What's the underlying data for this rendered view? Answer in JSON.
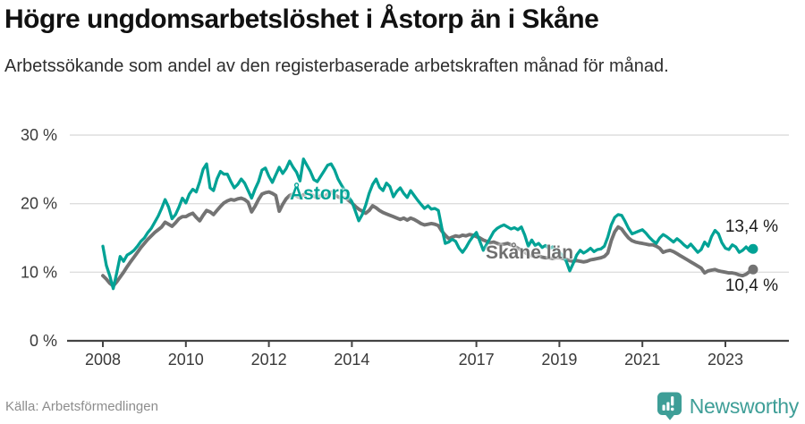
{
  "header": {
    "title": "Högre ungdomsarbetslöshet i Åstorp än i Skåne",
    "subtitle": "Arbetssökande som andel av den registerbaserade arbetskraften månad för månad."
  },
  "footer": {
    "source": "Källa: Arbetsförmedlingen",
    "brand": "Newsworthy"
  },
  "colors": {
    "accent_teal": "#00a295",
    "series_gray": "#737373",
    "brand_teal": "#3e9e97",
    "gridline": "#dedede",
    "axis": "#444444",
    "text_dark": "#1a1a1a"
  },
  "chart_data": {
    "type": "line",
    "unit": "%",
    "frequency": "monthly",
    "x_start": "2008-01",
    "x_end": "2023-09",
    "ylim": [
      0,
      30
    ],
    "grid": "horizontal",
    "legend_position": "inline-labels",
    "y_ticks": [
      {
        "value": 30,
        "label": "30 %"
      },
      {
        "value": 20,
        "label": "20 %"
      },
      {
        "value": 10,
        "label": "10 %"
      },
      {
        "value": 0,
        "label": "0 %"
      }
    ],
    "x_ticks": [
      {
        "year": 2008,
        "label": "2008"
      },
      {
        "year": 2010,
        "label": "2010"
      },
      {
        "year": 2012,
        "label": "2012"
      },
      {
        "year": 2014,
        "label": "2014"
      },
      {
        "year": 2017,
        "label": "2017"
      },
      {
        "year": 2019,
        "label": "2019"
      },
      {
        "year": 2021,
        "label": "2021"
      },
      {
        "year": 2023,
        "label": "2023"
      }
    ],
    "series": [
      {
        "name": "Åstorp",
        "color": "#00a295",
        "end_label": "13,4 %",
        "end_value": 13.4,
        "values": [
          13.8,
          11.0,
          9.5,
          7.6,
          9.9,
          12.3,
          11.6,
          12.5,
          12.8,
          13.2,
          13.8,
          14.5,
          15.0,
          15.8,
          16.4,
          17.3,
          18.2,
          19.3,
          20.6,
          19.5,
          17.8,
          18.4,
          19.5,
          20.8,
          20.1,
          21.4,
          22.1,
          21.7,
          23.2,
          25.0,
          25.8,
          22.3,
          21.9,
          23.6,
          24.7,
          24.3,
          24.3,
          23.2,
          22.3,
          22.8,
          23.6,
          23.0,
          21.9,
          20.8,
          22.1,
          23.2,
          24.9,
          25.2,
          24.0,
          23.1,
          24.2,
          25.3,
          24.4,
          25.1,
          26.2,
          25.3,
          24.6,
          23.3,
          26.5,
          25.6,
          24.7,
          23.5,
          23.2,
          24.0,
          24.8,
          25.6,
          25.8,
          24.9,
          23.6,
          22.7,
          21.9,
          21.0,
          20.3,
          18.9,
          17.5,
          18.4,
          19.8,
          21.5,
          22.8,
          23.6,
          22.4,
          21.9,
          23.0,
          22.5,
          21.0,
          21.8,
          22.3,
          21.5,
          20.9,
          21.9,
          21.2,
          20.5,
          19.9,
          19.3,
          19.7,
          19.2,
          19.3,
          19.0,
          16.5,
          14.2,
          14.4,
          14.8,
          14.5,
          13.5,
          12.9,
          13.6,
          14.5,
          15.2,
          15.8,
          14.5,
          13.2,
          14.1,
          15.0,
          15.9,
          16.4,
          16.7,
          16.9,
          16.6,
          16.3,
          16.5,
          16.2,
          16.6,
          15.4,
          13.8,
          14.7,
          13.9,
          14.2,
          13.6,
          13.9,
          13.4,
          13.7,
          13.2,
          12.9,
          12.4,
          11.6,
          10.2,
          11.3,
          12.5,
          13.2,
          12.8,
          13.1,
          13.5,
          13.0,
          13.3,
          13.4,
          13.8,
          15.1,
          16.9,
          18.0,
          18.4,
          18.3,
          17.4,
          16.4,
          15.6,
          15.8,
          16.0,
          16.2,
          15.7,
          15.1,
          14.6,
          14.2,
          15.0,
          15.5,
          15.2,
          14.8,
          14.4,
          14.9,
          14.5,
          14.0,
          13.6,
          14.1,
          13.5,
          12.9,
          13.3,
          14.4,
          13.8,
          15.2,
          16.1,
          15.6,
          14.3,
          13.5,
          13.3,
          14.0,
          13.7,
          12.9,
          13.2,
          13.7,
          13.1,
          13.4
        ]
      },
      {
        "name": "Skåne län",
        "color": "#737373",
        "end_label": "10,4 %",
        "end_value": 10.4,
        "values": [
          9.5,
          9.0,
          8.4,
          8.0,
          8.6,
          9.3,
          10.0,
          10.8,
          11.5,
          12.2,
          12.9,
          13.6,
          14.2,
          14.8,
          15.3,
          15.8,
          16.2,
          16.6,
          17.3,
          17.0,
          16.7,
          17.2,
          17.8,
          18.1,
          18.1,
          18.4,
          18.6,
          18.0,
          17.5,
          18.3,
          19.0,
          18.8,
          18.4,
          19.0,
          19.6,
          20.1,
          20.4,
          20.6,
          20.5,
          20.7,
          20.8,
          20.6,
          20.2,
          18.8,
          19.6,
          20.6,
          21.4,
          21.6,
          21.7,
          21.5,
          21.2,
          18.9,
          19.9,
          20.7,
          21.2,
          21.4,
          21.1,
          20.9,
          21.3,
          21.5,
          21.4,
          21.1,
          20.8,
          21.2,
          20.9,
          21.4,
          21.7,
          21.3,
          21.0,
          20.8,
          20.9,
          20.5,
          20.1,
          19.6,
          19.2,
          18.9,
          18.6,
          19.0,
          19.7,
          19.4,
          19.0,
          18.7,
          18.5,
          18.3,
          18.1,
          17.9,
          17.7,
          17.9,
          17.6,
          17.9,
          17.7,
          17.4,
          17.1,
          16.9,
          17.0,
          17.1,
          17.0,
          16.8,
          16.0,
          15.4,
          14.9,
          15.1,
          15.3,
          15.2,
          15.4,
          15.3,
          15.5,
          15.4,
          15.2,
          15.0,
          14.7,
          14.5,
          14.3,
          14.4,
          14.2,
          14.0,
          14.1,
          14.2,
          14.0,
          13.8,
          13.5,
          13.2,
          12.9,
          12.6,
          12.4,
          12.3,
          12.4,
          12.2,
          12.1,
          12.1,
          12.0,
          12.1,
          12.1,
          12.0,
          11.9,
          11.7,
          11.6,
          11.7,
          11.6,
          11.5,
          11.6,
          11.8,
          11.9,
          12.0,
          12.1,
          12.3,
          12.8,
          14.6,
          15.9,
          16.6,
          16.3,
          15.6,
          15.0,
          14.6,
          14.4,
          14.3,
          14.2,
          14.1,
          14.0,
          14.0,
          13.8,
          13.5,
          12.9,
          13.1,
          13.2,
          13.0,
          12.7,
          12.4,
          12.1,
          11.8,
          11.5,
          11.2,
          10.9,
          10.6,
          9.9,
          10.2,
          10.3,
          10.4,
          10.2,
          10.1,
          10.0,
          9.9,
          9.9,
          9.8,
          9.6,
          9.5,
          9.7,
          10.1,
          10.4
        ]
      }
    ]
  }
}
